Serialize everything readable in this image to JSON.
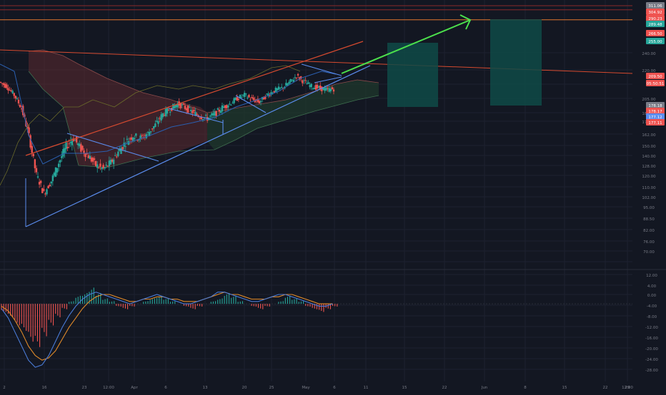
{
  "colors": {
    "background": "#131722",
    "grid": "#1e2230",
    "candle_up": "#26a69a",
    "candle_down": "#ef5350",
    "trend_blue": "#5b8def",
    "trend_red": "#d64a2f",
    "arrow_green": "#4ce04c",
    "target_box": "#0f4a47",
    "macd_line": "#4a7bd6",
    "signal_line": "#e08a2a",
    "cloud_red": "#5c2a2f",
    "cloud_green": "#1f3a2c",
    "axis_text": "#787b86"
  },
  "chart_data": [
    {
      "type": "candlestick",
      "title": "",
      "ylim": [
        60,
        320
      ],
      "yticks": [
        "240.00",
        "220.00",
        "205.00",
        "185.00",
        "175.00",
        "162.00",
        "150.00",
        "140.00",
        "128.00",
        "120.00",
        "110.00",
        "102.00",
        "95.00",
        "88.50",
        "82.00",
        "76.00",
        "70.00"
      ],
      "xticks": [
        "2",
        "16",
        "23",
        "12:00",
        "Apr",
        "6",
        "13",
        "20",
        "25",
        "May",
        "6",
        "11",
        "15",
        "22",
        "Jun",
        "8",
        "15",
        "22",
        "29",
        "12:00"
      ],
      "price_labels": [
        {
          "text": "311.06",
          "color": "#787b86"
        },
        {
          "text": "304.92",
          "color": "#ef5350"
        },
        {
          "text": "290.23",
          "color": "#ef5350"
        },
        {
          "text": "289.48",
          "color": "#26a69a"
        },
        {
          "text": "266.50",
          "color": "#ef5350"
        },
        {
          "text": "255.00",
          "color": "#26a69a"
        },
        {
          "text": "209.50",
          "color": "#ef5350"
        },
        {
          "text": "05:50:51",
          "color": "#ef5350"
        },
        {
          "text": "178.18",
          "color": "#787b86"
        },
        {
          "text": "178.17",
          "color": "#ef5350"
        },
        {
          "text": "177.12",
          "color": "#5b8def"
        },
        {
          "text": "177.11",
          "color": "#ef5350"
        }
      ],
      "price_series": [
        [
          0,
          205
        ],
        [
          2,
          200
        ],
        [
          4,
          190
        ],
        [
          6,
          175
        ],
        [
          8,
          150
        ],
        [
          10,
          120
        ],
        [
          12,
          105
        ],
        [
          14,
          115
        ],
        [
          16,
          130
        ],
        [
          18,
          142
        ],
        [
          20,
          148
        ],
        [
          22,
          140
        ],
        [
          24,
          135
        ],
        [
          26,
          128
        ],
        [
          28,
          125
        ],
        [
          30,
          130
        ],
        [
          32,
          138
        ],
        [
          34,
          145
        ],
        [
          36,
          150
        ],
        [
          38,
          148
        ],
        [
          40,
          152
        ],
        [
          42,
          160
        ],
        [
          44,
          170
        ],
        [
          46,
          175
        ],
        [
          48,
          180
        ],
        [
          50,
          176
        ],
        [
          52,
          172
        ],
        [
          54,
          168
        ],
        [
          56,
          166
        ],
        [
          58,
          170
        ],
        [
          60,
          176
        ],
        [
          62,
          180
        ],
        [
          64,
          186
        ],
        [
          66,
          190
        ],
        [
          68,
          185
        ],
        [
          70,
          182
        ],
        [
          72,
          190
        ],
        [
          74,
          195
        ],
        [
          76,
          198
        ],
        [
          78,
          204
        ],
        [
          80,
          212
        ],
        [
          82,
          205
        ],
        [
          84,
          200
        ],
        [
          86,
          198
        ],
        [
          88,
          196
        ],
        [
          90,
          197
        ]
      ],
      "projection": {
        "from": [
          90,
          197
        ],
        "to": [
          130,
          296
        ]
      },
      "horizontal_levels": [
        311.06,
        304.92,
        290.23
      ]
    },
    {
      "type": "histogram",
      "title": "",
      "ylim": [
        -30,
        14
      ],
      "yticks": [
        "12.00",
        "4.00",
        "0.00",
        "-4.00",
        "-8.00",
        "-12.00",
        "-16.00",
        "-20.00",
        "-24.00",
        "-28.00"
      ],
      "histogram": [
        -3,
        -5,
        -8,
        -10,
        -14,
        -16,
        -12,
        -8,
        -5,
        -2,
        1,
        3,
        4,
        6,
        4,
        2,
        1,
        -1,
        -2,
        -1,
        0,
        1,
        2,
        3,
        2,
        1,
        0,
        -1,
        -2,
        -1,
        0,
        1,
        2,
        4,
        3,
        1,
        0,
        -1,
        -2,
        -1,
        0,
        1,
        3,
        2,
        1,
        -1,
        -2,
        -3,
        -2,
        -1
      ],
      "macd": [
        -2,
        -6,
        -12,
        -18,
        -24,
        -27,
        -26,
        -22,
        -16,
        -10,
        -5,
        -1,
        2,
        4,
        5,
        4,
        3,
        2,
        1,
        0,
        1,
        2,
        3,
        4,
        3,
        2,
        1,
        0,
        0,
        1,
        2,
        3,
        5,
        5,
        4,
        3,
        2,
        1,
        1,
        2,
        3,
        4,
        4,
        3,
        2,
        1,
        0,
        -1,
        -1,
        0
      ],
      "signal": [
        -1,
        -3,
        -7,
        -12,
        -18,
        -22,
        -24,
        -23,
        -20,
        -15,
        -10,
        -6,
        -2,
        1,
        3,
        4,
        4,
        3,
        2,
        1,
        1,
        2,
        2,
        3,
        3,
        2,
        2,
        1,
        1,
        1,
        2,
        3,
        4,
        5,
        4,
        4,
        3,
        2,
        2,
        2,
        3,
        3,
        4,
        4,
        3,
        2,
        1,
        0,
        0,
        0
      ]
    }
  ]
}
